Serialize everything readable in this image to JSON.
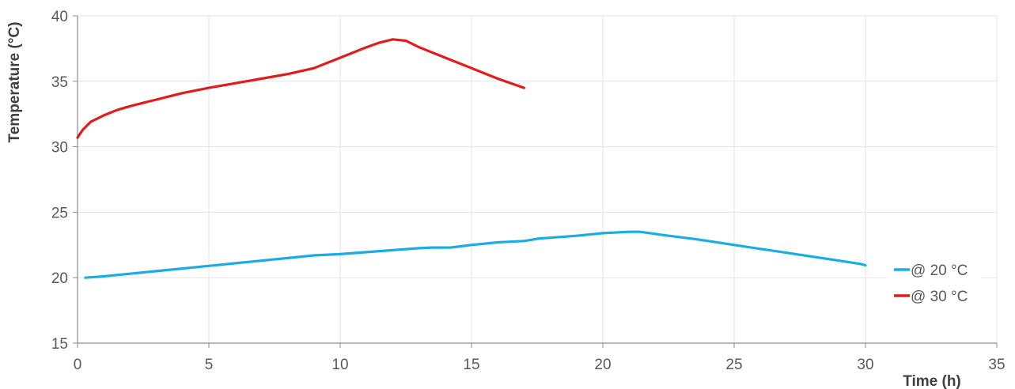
{
  "chart_data": {
    "type": "line",
    "title": "",
    "xlabel": "Time (h)",
    "ylabel": "Temperature (°C)",
    "xlim": [
      0,
      35
    ],
    "ylim": [
      15,
      40
    ],
    "x_ticks": [
      "0",
      "5",
      "10",
      "15",
      "20",
      "25",
      "30",
      "35"
    ],
    "y_ticks": [
      "15",
      "20",
      "25",
      "30",
      "35",
      "40"
    ],
    "grid": true,
    "legend_position": "right",
    "series": [
      {
        "name": "@ 20 °C",
        "color": "#1AADE4",
        "x": [
          0.3,
          1,
          2,
          3,
          4,
          5,
          6,
          7,
          8,
          9,
          10,
          11,
          12,
          13,
          13.5,
          14.2,
          15,
          16,
          17,
          17.3,
          17.6,
          18,
          19,
          20,
          21,
          21.4,
          21.8,
          22.5,
          23.5,
          25,
          26,
          27,
          28,
          29,
          29.8,
          30
        ],
        "values": [
          20.0,
          20.1,
          20.3,
          20.5,
          20.7,
          20.9,
          21.1,
          21.3,
          21.5,
          21.7,
          21.8,
          21.95,
          22.1,
          22.25,
          22.3,
          22.3,
          22.5,
          22.7,
          22.8,
          22.9,
          23.0,
          23.05,
          23.2,
          23.4,
          23.5,
          23.5,
          23.4,
          23.2,
          22.95,
          22.5,
          22.2,
          21.9,
          21.6,
          21.3,
          21.05,
          20.95
        ]
      },
      {
        "name": "@ 30 °C",
        "color": "#E21B1B",
        "x": [
          0,
          0.2,
          0.5,
          1,
          1.5,
          2,
          2.5,
          3,
          3.5,
          4,
          5,
          6,
          7,
          8,
          9,
          10,
          10.5,
          11,
          11.5,
          12,
          12.5,
          13,
          14,
          15,
          16,
          17
        ],
        "values": [
          30.7,
          31.3,
          31.9,
          32.4,
          32.8,
          33.1,
          33.35,
          33.6,
          33.85,
          34.1,
          34.5,
          34.85,
          35.2,
          35.55,
          36.0,
          36.8,
          37.2,
          37.6,
          37.95,
          38.2,
          38.1,
          37.6,
          36.8,
          36.0,
          35.2,
          34.5
        ]
      }
    ]
  }
}
